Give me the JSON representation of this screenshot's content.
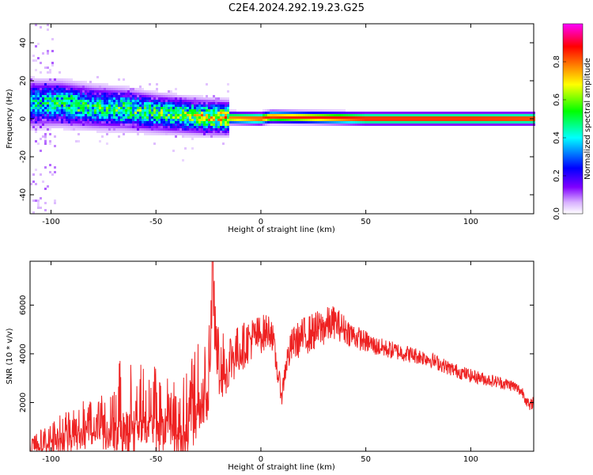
{
  "title": "C2E4.2024.292.19.23.G25",
  "chart_data": [
    {
      "type": "heatmap",
      "xlabel": "Height of straight line (km)",
      "ylabel": "Frequency (Hz)",
      "xlim": [
        -110,
        130
      ],
      "ylim": [
        -50,
        50
      ],
      "xticks": [
        -100,
        -50,
        0,
        50,
        100
      ],
      "yticks": [
        -40,
        -20,
        0,
        20,
        40
      ],
      "colorbar": {
        "label": "Normalized spectral amplitude",
        "range": [
          0,
          1
        ],
        "ticks": [
          "0.0",
          "0.2",
          "0.4",
          "0.6",
          "0.8"
        ],
        "tick_values": [
          0.0,
          0.2,
          0.4,
          0.6,
          0.8
        ],
        "colormap": [
          "#ffffff",
          "#cc99ff",
          "#8000ff",
          "#0000ff",
          "#00ffff",
          "#00ff00",
          "#ffff00",
          "#ff8000",
          "#ff0000",
          "#ff00ff"
        ]
      },
      "ridge": {
        "description_points": [
          {
            "x": -105,
            "y": 8,
            "amp": 0.45
          },
          {
            "x": -95,
            "y": 8,
            "amp": 0.5
          },
          {
            "x": -80,
            "y": 6,
            "amp": 0.5
          },
          {
            "x": -65,
            "y": 5,
            "amp": 0.55
          },
          {
            "x": -50,
            "y": 3,
            "amp": 0.55
          },
          {
            "x": -35,
            "y": 1.5,
            "amp": 0.6
          },
          {
            "x": -20,
            "y": 0.5,
            "amp": 0.75
          },
          {
            "x": 0,
            "y": 0,
            "amp": 0.85
          },
          {
            "x": 5,
            "y": 1,
            "amp": 0.85
          },
          {
            "x": 50,
            "y": 0,
            "amp": 0.9
          },
          {
            "x": 100,
            "y": 0,
            "amp": 0.9
          },
          {
            "x": 130,
            "y": 0,
            "amp": 0.88
          }
        ]
      }
    },
    {
      "type": "line",
      "xlabel": "Height of straight line (km)",
      "ylabel": "SNR (10 * v/v)",
      "xlim": [
        -110,
        130
      ],
      "ylim": [
        0,
        7800
      ],
      "xticks": [
        -100,
        -50,
        0,
        50,
        100
      ],
      "yticks": [
        2000,
        4000,
        6000
      ],
      "color": "#ee2222",
      "series": [
        {
          "x": [
            -110,
            -100,
            -90,
            -80,
            -70,
            -65,
            -60,
            -55,
            -50,
            -45,
            -40,
            -35,
            -30,
            -25,
            -23,
            -20,
            -15,
            -10,
            -5,
            0,
            5,
            8,
            10,
            12,
            15,
            20,
            25,
            30,
            35,
            40,
            45,
            50,
            55,
            60,
            70,
            80,
            90,
            100,
            110,
            120,
            125,
            128,
            130
          ],
          "y": [
            300,
            600,
            1000,
            1400,
            1600,
            2400,
            2000,
            2200,
            1800,
            2000,
            1400,
            1800,
            2600,
            3200,
            6600,
            3600,
            3800,
            4200,
            4600,
            4800,
            5000,
            3200,
            2300,
            3600,
            4400,
            4700,
            4900,
            5100,
            5300,
            5000,
            4700,
            4500,
            4300,
            4200,
            4000,
            3800,
            3400,
            3100,
            2900,
            2700,
            2400,
            1800,
            2100
          ]
        },
        {
          "noise_amplitude": [
            300,
            600,
            900,
            1100,
            1300,
            2200,
            1800,
            1800,
            1700,
            1600,
            1500,
            1600,
            1800,
            1700,
            1200,
            1400,
            1200,
            1000,
            900,
            800,
            700,
            500,
            400,
            600,
            700,
            800,
            800,
            800,
            700,
            600,
            500,
            450,
            400,
            380,
            350,
            320,
            300,
            280,
            260,
            250,
            250,
            250,
            250
          ]
        }
      ]
    }
  ]
}
